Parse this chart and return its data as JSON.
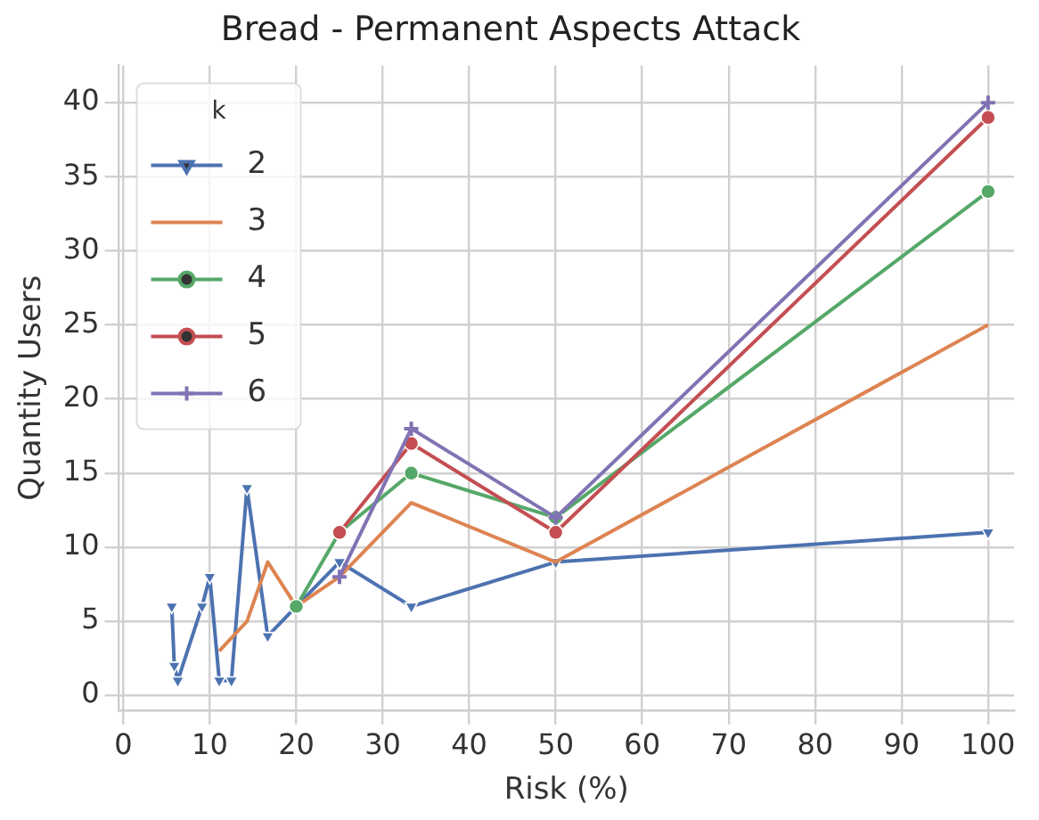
{
  "chart_data": {
    "type": "line",
    "title": "Bread - Permanent Aspects Attack",
    "xlabel": "Risk (%)",
    "ylabel": "Quantity Users",
    "legend_title": "k",
    "series": [
      {
        "name": "2",
        "color": "#4c72b0",
        "marker": "triangle",
        "x": [
          5.6,
          5.9,
          6.3,
          9.1,
          10,
          11.1,
          12.5,
          14.3,
          16.7,
          20,
          25,
          33.3,
          50,
          100
        ],
        "values": [
          6,
          2,
          1,
          6,
          8,
          1,
          1,
          14,
          4,
          6,
          9,
          6,
          9,
          11
        ]
      },
      {
        "name": "3",
        "color": "#dd8452",
        "marker": "none",
        "x": [
          11.1,
          14.3,
          16.7,
          20,
          25,
          33.3,
          50,
          100
        ],
        "values": [
          3,
          5,
          9,
          6,
          8,
          13,
          9,
          25
        ]
      },
      {
        "name": "4",
        "color": "#55a868",
        "marker": "circle",
        "x": [
          20,
          25,
          33.3,
          50,
          100
        ],
        "values": [
          6,
          11,
          15,
          12,
          34
        ]
      },
      {
        "name": "5",
        "color": "#c44e52",
        "marker": "circle",
        "x": [
          25,
          33.3,
          50,
          100
        ],
        "values": [
          11,
          17,
          11,
          39
        ]
      },
      {
        "name": "6",
        "color": "#8172b3",
        "marker": "cross",
        "x": [
          25,
          33.3,
          50,
          100
        ],
        "values": [
          8,
          18,
          12,
          40
        ]
      }
    ],
    "xlim": [
      -0.5,
      103
    ],
    "xticks": [
      0,
      10,
      20,
      30,
      40,
      50,
      60,
      70,
      80,
      90,
      100
    ],
    "ylim": [
      -1,
      42.5
    ],
    "yticks": [
      0,
      5,
      10,
      15,
      20,
      25,
      30,
      35,
      40
    ],
    "grid": true,
    "legend": "top left",
    "line_style": "solid"
  }
}
